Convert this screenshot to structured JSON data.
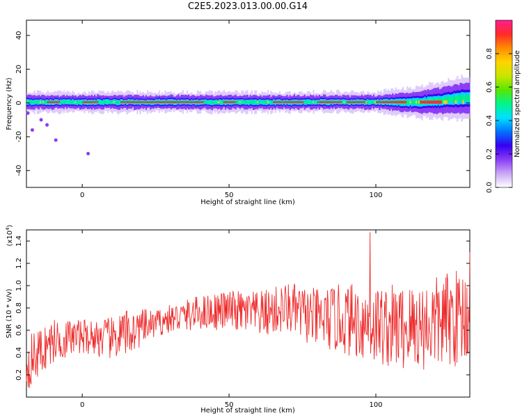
{
  "title": "C2E5.2023.013.00.00.G14",
  "colors": {
    "snr_line": "#ee2b2b",
    "colormap": [
      "#ffffff",
      "#c9a7f7",
      "#8a3cf5",
      "#3500f0",
      "#0073ff",
      "#00e0ff",
      "#00f58a",
      "#5be600",
      "#c8e600",
      "#ffd400",
      "#ff8c00",
      "#ff2a2a",
      "#ff1f8e"
    ]
  },
  "chart_data": [
    {
      "type": "heatmap",
      "xlabel": "Height of straight line (km)",
      "ylabel": "Frequency (Hz)",
      "xlim": [
        -19,
        132
      ],
      "ylim": [
        -50,
        49
      ],
      "xticks": [
        0,
        50,
        100
      ],
      "yticks": [
        -40,
        -20,
        0,
        20,
        40
      ],
      "x_tick_labels": [
        "0",
        "50",
        "100"
      ],
      "y_tick_labels": [
        "-40",
        "-20",
        "0",
        "20",
        "40"
      ],
      "description_band": {
        "center_freq_hz": 0.5,
        "half_width_hz": 2.5,
        "strong_segments_km": [
          [
            -12,
            -8
          ],
          [
            0,
            5
          ],
          [
            13,
            41
          ],
          [
            48,
            52
          ],
          [
            65,
            75
          ],
          [
            80,
            88
          ],
          [
            90,
            96
          ],
          [
            100,
            110
          ],
          [
            115,
            122
          ]
        ],
        "outliers": [
          {
            "x": -18.5,
            "y": -6
          },
          {
            "x": -17,
            "y": -16
          },
          {
            "x": -14,
            "y": -10
          },
          {
            "x": -12,
            "y": -13
          },
          {
            "x": -9,
            "y": -22
          },
          {
            "x": 2,
            "y": -30
          }
        ]
      },
      "colorbar": {
        "label": "Normalized spectral amplitude",
        "range": [
          0,
          1
        ],
        "ticks": [
          0.0,
          0.2,
          0.4,
          0.6,
          0.8
        ],
        "tick_labels": [
          "0.0",
          "0.2",
          "0.4",
          "0.6",
          "0.8"
        ]
      }
    },
    {
      "type": "line",
      "xlabel": "Height of straight line (km)",
      "ylabel": "SNR (10 * v/v)",
      "exponent_label": "(x10",
      "exponent_power": "4",
      "xlim": [
        -19,
        132
      ],
      "ylim": [
        0.0,
        1.5
      ],
      "xticks": [
        0,
        50,
        100
      ],
      "yticks": [
        0.2,
        0.4,
        0.6,
        0.8,
        1.0,
        1.2,
        1.4
      ],
      "x_tick_labels": [
        "0",
        "50",
        "100"
      ],
      "y_tick_labels": [
        "0.2",
        "0.4",
        "0.6",
        "0.8",
        "1.0",
        "1.2",
        "1.4"
      ],
      "series": [
        {
          "color": "#ee2b2b",
          "baseline_points": [
            {
              "x": -19,
              "y": 0.3
            },
            {
              "x": -10,
              "y": 0.5
            },
            {
              "x": 0,
              "y": 0.55
            },
            {
              "x": 10,
              "y": 0.52
            },
            {
              "x": 20,
              "y": 0.62
            },
            {
              "x": 30,
              "y": 0.7
            },
            {
              "x": 40,
              "y": 0.76
            },
            {
              "x": 50,
              "y": 0.78
            },
            {
              "x": 60,
              "y": 0.74
            },
            {
              "x": 70,
              "y": 0.8
            },
            {
              "x": 80,
              "y": 0.7
            },
            {
              "x": 90,
              "y": 0.7
            },
            {
              "x": 100,
              "y": 0.65
            },
            {
              "x": 110,
              "y": 0.62
            },
            {
              "x": 120,
              "y": 0.66
            },
            {
              "x": 132,
              "y": 0.75
            }
          ],
          "noise_amplitude": [
            {
              "x": -19,
              "y": 0.25
            },
            {
              "x": 0,
              "y": 0.15
            },
            {
              "x": 15,
              "y": 0.22
            },
            {
              "x": 25,
              "y": 0.12
            },
            {
              "x": 50,
              "y": 0.18
            },
            {
              "x": 75,
              "y": 0.25
            },
            {
              "x": 95,
              "y": 0.35
            },
            {
              "x": 110,
              "y": 0.4
            },
            {
              "x": 132,
              "y": 0.45
            }
          ],
          "peaks": [
            {
              "x": 98,
              "y": 1.48
            },
            {
              "x": 132,
              "y": 1.3
            }
          ]
        }
      ]
    }
  ]
}
